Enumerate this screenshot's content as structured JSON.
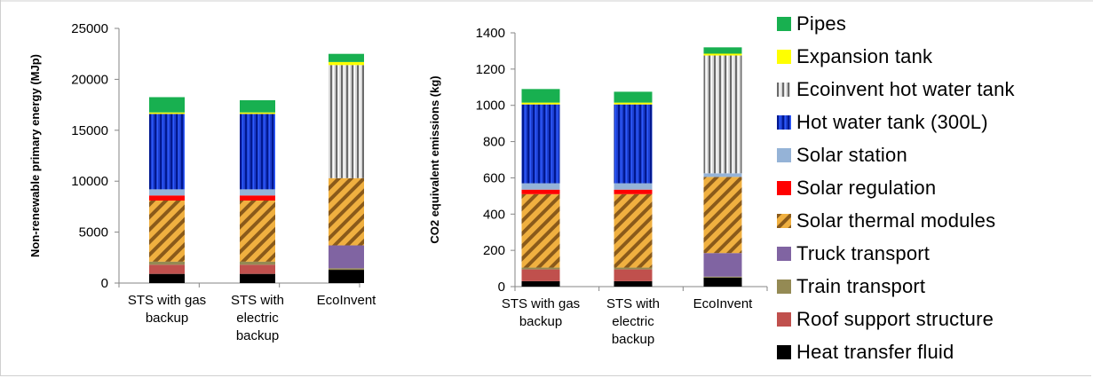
{
  "chart_data": [
    {
      "type": "bar",
      "stacked": true,
      "ylabel": "Non-renewable primary energy (MJp)",
      "ylim": [
        0,
        25000
      ],
      "yticks": [
        0,
        5000,
        10000,
        15000,
        20000,
        25000
      ],
      "grid": false,
      "categories": [
        "STS with gas backup",
        "STS with electric backup",
        "EcoInvent"
      ],
      "category_lines": [
        [
          "STS with gas",
          "backup"
        ],
        [
          "STS with",
          "electric",
          "backup"
        ],
        [
          "EcoInvent"
        ]
      ],
      "series": [
        {
          "name": "Heat transfer fluid",
          "values": [
            900,
            900,
            1300
          ]
        },
        {
          "name": "Roof support structure",
          "values": [
            900,
            900,
            0
          ]
        },
        {
          "name": "Train transport",
          "values": [
            300,
            300,
            150
          ]
        },
        {
          "name": "Truck transport",
          "values": [
            0,
            0,
            2250
          ]
        },
        {
          "name": "Solar thermal modules",
          "values": [
            6000,
            6000,
            6600
          ]
        },
        {
          "name": "Solar regulation",
          "values": [
            500,
            500,
            0
          ]
        },
        {
          "name": "Solar station",
          "values": [
            600,
            600,
            0
          ]
        },
        {
          "name": "Hot water tank (300L)",
          "values": [
            7400,
            7400,
            0
          ]
        },
        {
          "name": "Ecoinvent hot water tank",
          "values": [
            0,
            0,
            11100
          ]
        },
        {
          "name": "Expansion tank",
          "values": [
            150,
            150,
            300
          ]
        },
        {
          "name": "Pipes",
          "values": [
            1500,
            1200,
            800
          ]
        }
      ]
    },
    {
      "type": "bar",
      "stacked": true,
      "ylabel": "CO2 equivalent emissions (kg)",
      "ylim": [
        0,
        1400
      ],
      "yticks": [
        0,
        200,
        400,
        600,
        800,
        1000,
        1200,
        1400
      ],
      "grid": false,
      "categories": [
        "STS with gas backup",
        "STS with electric backup",
        "EcoInvent"
      ],
      "category_lines": [
        [
          "STS with gas",
          "backup"
        ],
        [
          "STS with",
          "electric",
          "backup"
        ],
        [
          "EcoInvent"
        ]
      ],
      "series": [
        {
          "name": "Heat transfer fluid",
          "values": [
            30,
            30,
            50
          ]
        },
        {
          "name": "Roof support structure",
          "values": [
            65,
            65,
            0
          ]
        },
        {
          "name": "Train transport",
          "values": [
            10,
            10,
            5
          ]
        },
        {
          "name": "Truck transport",
          "values": [
            0,
            0,
            130
          ]
        },
        {
          "name": "Solar thermal modules",
          "values": [
            405,
            405,
            420
          ]
        },
        {
          "name": "Solar regulation",
          "values": [
            25,
            25,
            0
          ]
        },
        {
          "name": "Solar station",
          "values": [
            35,
            35,
            20
          ]
        },
        {
          "name": "Hot water tank (300L)",
          "values": [
            435,
            435,
            0
          ]
        },
        {
          "name": "Ecoinvent hot water tank",
          "values": [
            0,
            0,
            650
          ]
        },
        {
          "name": "Expansion tank",
          "values": [
            10,
            10,
            10
          ]
        },
        {
          "name": "Pipes",
          "values": [
            75,
            60,
            35
          ]
        }
      ]
    }
  ],
  "legend": {
    "placement": "right",
    "items": [
      {
        "name": "Pipes",
        "color": "#18b050",
        "pattern": "solid"
      },
      {
        "name": "Expansion tank",
        "color": "#ffff00",
        "pattern": "solid"
      },
      {
        "name": "Ecoinvent hot water tank",
        "color": "#a6a6a6",
        "pattern": "vstripes-grey"
      },
      {
        "name": "Hot water tank (300L)",
        "color": "#0033cc",
        "pattern": "vstripes-blue"
      },
      {
        "name": "Solar station",
        "color": "#95b3d7",
        "pattern": "solid"
      },
      {
        "name": "Solar regulation",
        "color": "#ff0000",
        "pattern": "solid"
      },
      {
        "name": "Solar thermal modules",
        "color": "#e8a33a",
        "pattern": "diag-orange"
      },
      {
        "name": "Truck transport",
        "color": "#8064a2",
        "pattern": "solid"
      },
      {
        "name": "Train transport",
        "color": "#948a54",
        "pattern": "solid"
      },
      {
        "name": "Roof support structure",
        "color": "#c0504d",
        "pattern": "solid"
      },
      {
        "name": "Heat transfer fluid",
        "color": "#000000",
        "pattern": "solid"
      }
    ]
  }
}
